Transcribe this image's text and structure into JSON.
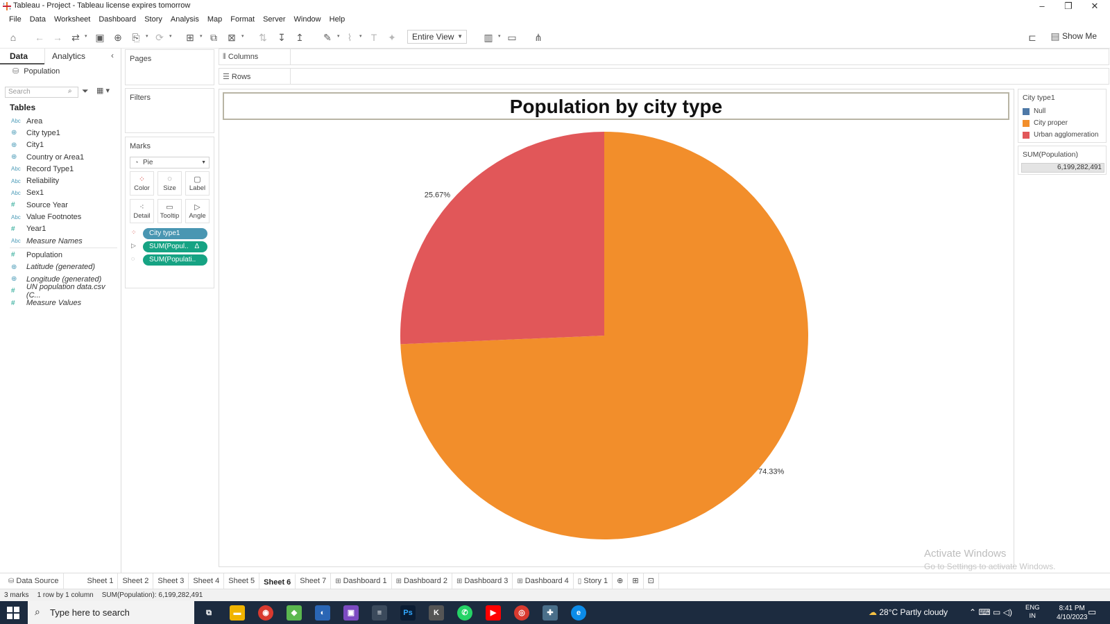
{
  "window": {
    "title": "Tableau - Project - Tableau license expires tomorrow"
  },
  "menu": [
    "File",
    "Data",
    "Worksheet",
    "Dashboard",
    "Story",
    "Analysis",
    "Map",
    "Format",
    "Server",
    "Window",
    "Help"
  ],
  "toolbar": {
    "view_select": "Entire View",
    "show_me": "Show Me"
  },
  "data_pane": {
    "tab_data": "Data",
    "tab_analytics": "Analytics",
    "datasource": "Population",
    "search_placeholder": "Search",
    "tables_heading": "Tables",
    "fields": [
      {
        "type": "Abc",
        "name": "Area",
        "italic": false
      },
      {
        "type": "geo",
        "name": "City type1",
        "italic": false
      },
      {
        "type": "geo",
        "name": "City1",
        "italic": false
      },
      {
        "type": "geo",
        "name": "Country or Area1",
        "italic": false
      },
      {
        "type": "Abc",
        "name": "Record Type1",
        "italic": false
      },
      {
        "type": "Abc",
        "name": "Reliability",
        "italic": false
      },
      {
        "type": "Abc",
        "name": "Sex1",
        "italic": false
      },
      {
        "type": "#",
        "name": "Source Year",
        "italic": false
      },
      {
        "type": "Abc",
        "name": "Value Footnotes",
        "italic": false
      },
      {
        "type": "#",
        "name": "Year1",
        "italic": false
      },
      {
        "type": "Abc",
        "name": "Measure Names",
        "italic": true
      },
      {
        "type": "#",
        "name": "Population",
        "italic": false
      },
      {
        "type": "geo",
        "name": "Latitude (generated)",
        "italic": true
      },
      {
        "type": "geo",
        "name": "Longitude (generated)",
        "italic": true
      },
      {
        "type": "#",
        "name": "UN population data.csv (C...",
        "italic": true
      },
      {
        "type": "#",
        "name": "Measure Values",
        "italic": true
      }
    ]
  },
  "cards": {
    "pages": "Pages",
    "filters": "Filters",
    "marks": "Marks",
    "mark_type": "Pie",
    "mark_buttons": [
      "Color",
      "Size",
      "Label",
      "Detail",
      "Tooltip",
      "Angle"
    ],
    "pills": [
      "City type1",
      "SUM(Popul..",
      "SUM(Populati.."
    ]
  },
  "shelves": {
    "columns": "Columns",
    "rows": "Rows"
  },
  "legend": {
    "title": "City type1",
    "items": [
      {
        "label": "Null",
        "color": "#4e79a7"
      },
      {
        "label": "City proper",
        "color": "#f28e2b"
      },
      {
        "label": "Urban agglomeration",
        "color": "#e15759"
      }
    ],
    "sum_title": "SUM(Population)",
    "sum_value": "6,199,282,491"
  },
  "chart_data": {
    "type": "pie",
    "title": "Population by city type",
    "slices": [
      {
        "label": "City proper",
        "percent": 74.33,
        "percent_label": "74.33%",
        "color": "#f28e2b"
      },
      {
        "label": "Urban agglomeration",
        "percent": 25.67,
        "percent_label": "25.67%",
        "color": "#e15759"
      }
    ]
  },
  "watermark": {
    "line1": "Activate Windows",
    "line2": "Go to Settings to activate Windows."
  },
  "sheet_tabs": [
    "Data Source",
    "Sheet 1",
    "Sheet 2",
    "Sheet 3",
    "Sheet 4",
    "Sheet 5",
    "Sheet 6",
    "Sheet 7",
    "Dashboard 1",
    "Dashboard 2",
    "Dashboard 3",
    "Dashboard 4",
    "Story 1"
  ],
  "active_tab": "Sheet 6",
  "status": {
    "marks": "3 marks",
    "rows": "1 row by 1 column",
    "sum": "SUM(Population): 6,199,282,491"
  },
  "taskbar": {
    "search_placeholder": "Type here to search",
    "weather": "28°C  Partly cloudy",
    "lang1": "ENG",
    "lang2": "IN",
    "time": "8:41 PM",
    "date": "4/10/2023"
  }
}
